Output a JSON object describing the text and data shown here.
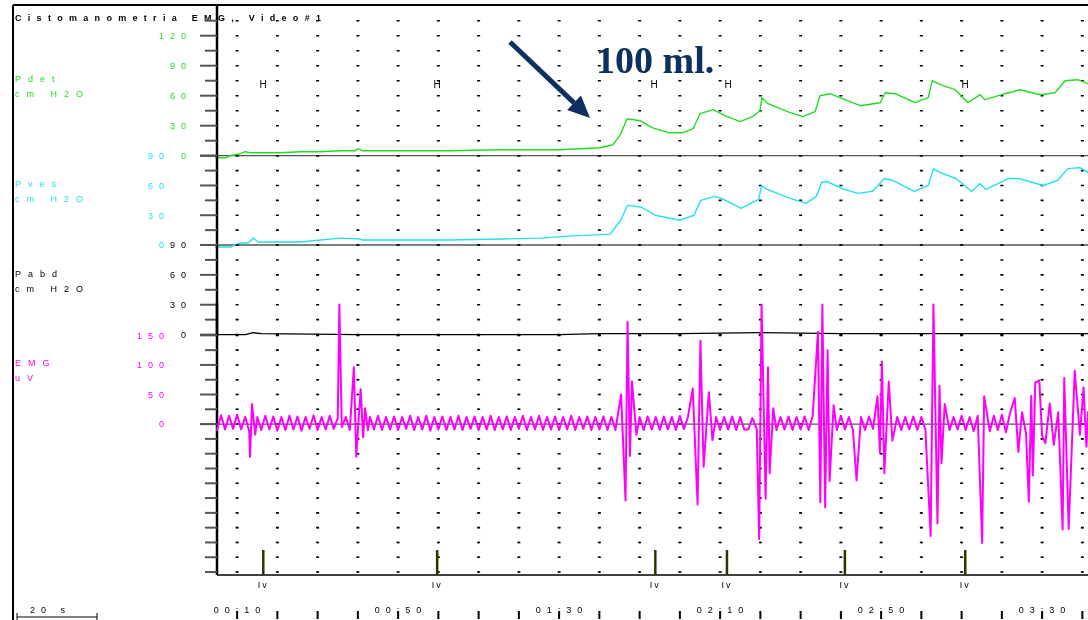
{
  "chart_data": [
    {
      "type": "line",
      "title": "Cistomanometria EMG, Video#1",
      "ylabel": "Pdet\ncm H2O",
      "tick_labels": "y",
      "grid": "y",
      "x": [
        5,
        7.3,
        8.3,
        10.7,
        12,
        13.2,
        15.7,
        20.7,
        25.7,
        30.6,
        35.6,
        39.3,
        40.1,
        41.1,
        50.5,
        62.9,
        75.3,
        85.3,
        90.2,
        95.2,
        100.2,
        103.4,
        105.2,
        106.9,
        110.1,
        113.1,
        117.1,
        120.8,
        123.3,
        125,
        128.3,
        131.2,
        135,
        138,
        139.9,
        140.4,
        141.9,
        147.4,
        150.6,
        153.6,
        154.8,
        157.3,
        161,
        164.8,
        169.8,
        171,
        173.5,
        178.4,
        181.7,
        182.7,
        184.7,
        188.4,
        191.6,
        194.6,
        195.8,
        200.8,
        204.5,
        209.5,
        213.2,
        215.7,
        218.9,
        221.4
      ],
      "series": [
        {
          "color": "#22dd22",
          "values": [
            -2,
            -2,
            0,
            2,
            4,
            3,
            3,
            3,
            4,
            4,
            5,
            5,
            7,
            5,
            5,
            5,
            6,
            6,
            6,
            7,
            8,
            11,
            21,
            37,
            35,
            28,
            23,
            23,
            27,
            42,
            46,
            40,
            34,
            39,
            45,
            58,
            52,
            43,
            39,
            44,
            60,
            62,
            56,
            50,
            53,
            63,
            62,
            53,
            58,
            75,
            71,
            66,
            53,
            61,
            56,
            62,
            66,
            61,
            63,
            75,
            76,
            72
          ]
        }
      ],
      "xlim": [
        5,
        221.4
      ],
      "ylim": [
        -3,
        150
      ],
      "yticks": [
        0,
        {
          "value": 15,
          "label": null
        },
        30,
        {
          "value": 45,
          "label": null
        },
        60,
        {
          "value": 75,
          "label": null
        },
        90,
        {
          "value": 105,
          "label": null
        },
        120,
        {
          "value": 135,
          "label": null
        }
      ],
      "annotations": [
        "100 ml.",
        "H",
        "H",
        "H",
        "H",
        "H"
      ]
    },
    {
      "type": "line",
      "ylabel": "Pves\ncm H2O",
      "tick_labels": "y",
      "grid": "y",
      "x": [
        5,
        8.3,
        10.7,
        12.7,
        14,
        15.2,
        25.7,
        35.6,
        40.6,
        41.1,
        50.5,
        62.9,
        75.3,
        85.3,
        92.2,
        102.7,
        105.3,
        107,
        110.5,
        113.9,
        120,
        123.5,
        125.2,
        128.7,
        130.4,
        135.2,
        139.6,
        140.3,
        141.7,
        147.4,
        151.3,
        153.9,
        155.2,
        156.5,
        160.8,
        164.3,
        167.8,
        170.8,
        173,
        178.2,
        181.7,
        183,
        184.7,
        188.6,
        192.5,
        194.5,
        196,
        201.6,
        204.2,
        210.3,
        213.8,
        216.4,
        219.4,
        221.4
      ],
      "series": [
        {
          "color": "#22e0ee",
          "values": [
            -2,
            -2,
            2,
            2,
            7,
            3,
            3,
            7,
            6,
            5,
            5,
            5,
            6,
            7,
            9,
            11,
            25,
            40,
            38,
            30,
            25,
            30,
            45,
            49,
            47,
            37,
            46,
            60,
            56,
            47,
            42,
            49,
            63,
            64,
            56,
            52,
            54,
            67,
            65,
            54,
            60,
            77,
            73,
            67,
            54,
            62,
            56,
            67,
            67,
            60,
            65,
            77,
            78,
            73
          ]
        }
      ],
      "xlim": [
        5,
        221.4
      ],
      "ylim": [
        -3,
        90
      ],
      "yticks": [
        0,
        {
          "value": 15,
          "label": null
        },
        30,
        {
          "value": 45,
          "label": null
        },
        60,
        {
          "value": 75,
          "label": null
        },
        90
      ]
    },
    {
      "type": "line",
      "ylabel": "Pabd\ncm H2O",
      "tick_labels": "y",
      "grid": "y",
      "x": [
        5,
        12,
        14,
        16,
        40,
        60,
        90,
        100,
        120,
        140,
        160,
        180,
        200,
        221.4
      ],
      "series": [
        {
          "color": "#000000",
          "values": [
            0,
            0,
            2,
            1,
            0,
            0,
            0,
            1,
            1,
            2,
            1,
            1,
            1,
            1
          ]
        }
      ],
      "xlim": [
        5,
        221.4
      ],
      "ylim": [
        0,
        90
      ],
      "yticks": [
        0,
        {
          "value": 15,
          "label": null
        },
        30,
        {
          "value": 45,
          "label": null
        },
        60,
        {
          "value": 75,
          "label": null
        },
        90
      ]
    },
    {
      "type": "line",
      "ylabel": "EMG\nuV",
      "grid": true,
      "x": [
        5,
        6,
        7,
        8,
        9,
        10,
        11,
        12,
        13,
        13.2,
        13.7,
        14.5,
        15,
        16,
        17,
        18,
        19,
        20,
        21,
        22,
        23,
        24,
        25,
        26,
        27,
        28,
        29,
        30,
        31,
        32,
        33,
        34,
        35,
        35.4,
        36,
        37,
        38,
        39,
        39.6,
        40.2,
        40.7,
        41.3,
        41.8,
        42.5,
        43,
        44,
        45,
        46,
        47,
        48,
        49,
        50,
        51,
        52,
        53,
        54,
        55,
        56,
        57,
        58,
        59,
        60,
        61,
        62,
        63,
        64,
        65,
        66,
        67,
        68,
        69,
        70,
        71,
        72,
        73,
        74,
        75,
        76,
        77,
        78,
        79,
        80,
        81,
        82,
        83,
        84,
        85,
        86,
        87,
        88,
        89,
        90,
        91,
        92,
        93,
        94,
        95,
        96,
        97,
        98,
        99,
        100,
        101,
        102,
        103,
        104,
        105.4,
        106.5,
        107,
        107.6,
        108.1,
        109.2,
        110,
        111,
        112,
        113,
        114,
        115,
        116,
        117,
        118,
        119,
        120,
        121,
        122,
        123.2,
        124.4,
        125.1,
        125.9,
        127.2,
        128.1,
        129,
        130,
        131,
        132,
        133,
        134,
        135,
        136,
        137,
        138,
        139.1,
        139.7,
        140.3,
        141.3,
        141.9,
        142.3,
        143.2,
        144,
        145,
        146,
        147,
        148,
        149,
        150,
        151,
        152,
        153,
        154.3,
        154.9,
        155.4,
        156.1,
        156.7,
        157.2,
        158.2,
        159,
        160,
        161,
        162,
        163,
        163.9,
        165,
        166,
        167,
        168,
        169.1,
        169.7,
        170.2,
        170.8,
        171.9,
        172.8,
        174,
        175,
        176,
        177,
        178,
        179,
        180,
        181,
        182.3,
        183,
        184,
        184.5,
        185,
        185.8,
        187,
        188,
        189,
        190,
        191,
        192,
        193,
        194,
        195.1,
        195.6,
        197,
        198,
        199,
        200,
        201,
        202,
        203.2,
        204.1,
        205,
        206,
        206.7,
        207.3,
        207.7,
        208.3,
        209.3,
        210,
        210.8,
        211.9,
        212.9,
        214,
        215.1,
        215.5,
        216.6,
        218.1,
        219.4,
        220.3,
        221,
        221.4
      ],
      "series": [
        {
          "color": "#ff00ff",
          "values": [
            -10,
            15,
            -9,
            14,
            -8,
            16,
            -9,
            12,
            -12,
            -55,
            34,
            -18,
            12,
            -10,
            14,
            -9,
            13,
            -11,
            12,
            -10,
            14,
            -9,
            13,
            -11,
            12,
            -8,
            15,
            -10,
            12,
            -9,
            14,
            -8,
            10,
            202,
            -5,
            12,
            -10,
            96,
            -55,
            10,
            59,
            -22,
            27,
            -10,
            12,
            -9,
            14,
            -10,
            12,
            -9,
            13,
            -10,
            12,
            -8,
            14,
            -10,
            12,
            -9,
            14,
            -11,
            12,
            -9,
            13,
            -10,
            12,
            -9,
            14,
            -10,
            12,
            -8,
            13,
            -10,
            12,
            -9,
            14,
            -10,
            12,
            -9,
            13,
            -10,
            12,
            -8,
            14,
            -10,
            12,
            -9,
            14,
            -10,
            12,
            -9,
            13,
            -10,
            12,
            -9,
            14,
            -10,
            12,
            -8,
            13,
            -10,
            12,
            -9,
            13,
            -10,
            12,
            -10,
            50,
            -129,
            173,
            -54,
            72,
            -18,
            12,
            -10,
            13,
            -9,
            12,
            -10,
            13,
            -9,
            12,
            -10,
            14,
            -8,
            12,
            60,
            -136,
            141,
            -72,
            54,
            -27,
            12,
            -10,
            12,
            -9,
            13,
            -10,
            12,
            -9,
            -9,
            10,
            -8,
            -194,
            202,
            -126,
            96,
            -83,
            27,
            -10,
            12,
            -9,
            13,
            -10,
            12,
            -9,
            13,
            -10,
            14,
            156,
            -132,
            202,
            -141,
            125,
            -96,
            32,
            -10,
            14,
            -9,
            12,
            -10,
            -95,
            12,
            -10,
            13,
            -8,
            47,
            -48,
            106,
            -83,
            72,
            -28,
            12,
            -10,
            12,
            -9,
            13,
            -10,
            12,
            -9,
            -189,
            202,
            -168,
            65,
            -66,
            34,
            -10,
            12,
            -9,
            14,
            -10,
            12,
            -12,
            14,
            -201,
            47,
            -12,
            14,
            -10,
            16,
            -14,
            18,
            44,
            -47,
            20,
            -15,
            -131,
            48,
            -87,
            70,
            74,
            -20,
            -32,
            35,
            -35,
            20,
            -178,
            78,
            -177,
            90,
            -18,
            62,
            -38,
            20
          ]
        }
      ],
      "xlim": [
        5,
        221.4
      ],
      "ylim": [
        -255,
        205
      ],
      "xticks": [
        {
          "value": 10,
          "label": "00:10"
        },
        {
          "value": 20,
          "label": null
        },
        {
          "value": 30,
          "label": null
        },
        {
          "value": 40,
          "label": null
        },
        {
          "value": 50,
          "label": "00:50"
        },
        {
          "value": 60,
          "label": null
        },
        {
          "value": 70,
          "label": null
        },
        {
          "value": 80,
          "label": null
        },
        {
          "value": 90,
          "label": "01:30"
        },
        {
          "value": 100,
          "label": null
        },
        {
          "value": 110,
          "label": null
        },
        {
          "value": 120,
          "label": null
        },
        {
          "value": 130,
          "label": "02:10"
        },
        {
          "value": 140,
          "label": null
        },
        {
          "value": 150,
          "label": null
        },
        {
          "value": 160,
          "label": null
        },
        {
          "value": 170,
          "label": "02:50"
        },
        {
          "value": 180,
          "label": null
        },
        {
          "value": 190,
          "label": null
        },
        {
          "value": 200,
          "label": null
        },
        {
          "value": 210,
          "label": "03:30"
        },
        {
          "value": 220,
          "label": null
        }
      ],
      "yticks": [
        {
          "value": -250,
          "label": null
        },
        {
          "value": -225,
          "label": null
        },
        {
          "value": -200,
          "label": null
        },
        {
          "value": -175,
          "label": null
        },
        {
          "value": -150,
          "label": null
        },
        {
          "value": -125,
          "label": null
        },
        {
          "value": -100,
          "label": null
        },
        {
          "value": -75,
          "label": null
        },
        {
          "value": -50,
          "label": null
        },
        {
          "value": -25,
          "label": null
        },
        0,
        {
          "value": 25,
          "label": null
        },
        50,
        {
          "value": 75,
          "label": null
        },
        100,
        {
          "value": 125,
          "label": null
        },
        150
      ],
      "annotations": [
        "20 s"
      ],
      "ref_lines": [
        {
          "axis": "x",
          "value": 16.5,
          "label": "Iv"
        },
        {
          "axis": "x",
          "value": 59.7,
          "label": "Iv"
        },
        {
          "axis": "x",
          "value": 113.9,
          "label": "Iv"
        },
        {
          "axis": "x",
          "value": 131.7,
          "label": "Iv"
        },
        {
          "axis": "x",
          "value": 161,
          "label": "Iv"
        },
        {
          "axis": "x",
          "value": 190.9,
          "label": "Iv"
        }
      ]
    }
  ]
}
